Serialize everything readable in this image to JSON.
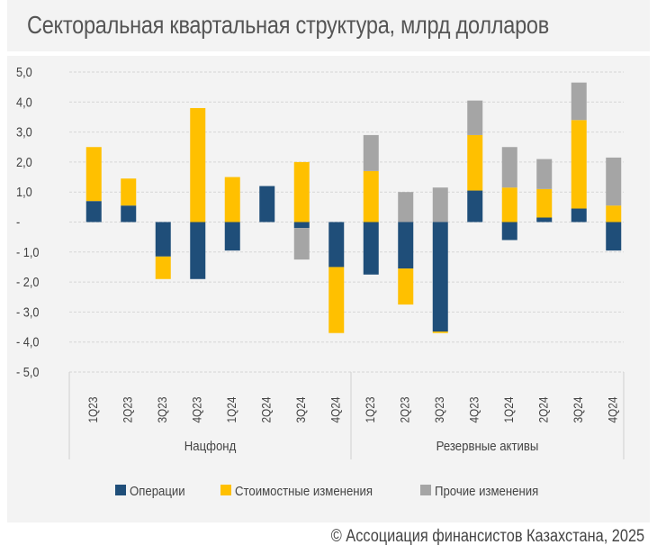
{
  "title": "Секторальная квартальная структура, млрд долларов",
  "copyright": "© Ассоциация финансистов Казахстана, 2025",
  "chart_data": {
    "type": "bar",
    "stacked": true,
    "groups": [
      {
        "label": "Нацфонд",
        "categories": [
          "1Q23",
          "2Q23",
          "3Q23",
          "4Q23",
          "1Q24",
          "2Q24",
          "3Q24",
          "4Q24"
        ]
      },
      {
        "label": "Резервные активы",
        "categories": [
          "1Q23",
          "2Q23",
          "3Q23",
          "4Q23",
          "1Q24",
          "2Q24",
          "3Q24",
          "4Q24"
        ]
      }
    ],
    "series": [
      {
        "name": "Операции",
        "color": "#1f4e79",
        "values": [
          0.7,
          0.55,
          -1.15,
          -1.9,
          -0.95,
          1.2,
          -0.2,
          -1.5,
          -1.75,
          -1.55,
          -3.65,
          1.05,
          -0.6,
          0.15,
          0.45,
          -0.95
        ]
      },
      {
        "name": "Стоимостные изменения",
        "color": "#ffc000",
        "values": [
          1.8,
          0.9,
          -0.75,
          3.8,
          1.5,
          0.0,
          2.0,
          -2.2,
          1.7,
          -1.2,
          -0.05,
          1.85,
          1.15,
          0.95,
          2.95,
          0.55
        ]
      },
      {
        "name": "Прочие изменения",
        "color": "#a5a5a5",
        "values": [
          0.0,
          0.0,
          0.0,
          0.0,
          0.0,
          0.0,
          -1.05,
          0.0,
          1.2,
          1.0,
          1.15,
          1.15,
          1.35,
          1.0,
          1.25,
          1.6
        ]
      }
    ],
    "yticks": [
      "5,0",
      "4,0",
      "3,0",
      "2,0",
      "1,0",
      "-",
      "- 1,0",
      "- 2,0",
      "- 3,0",
      "- 4,0",
      "- 5,0"
    ],
    "ylim": [
      -5,
      5
    ],
    "grid": true,
    "legend_position": "bottom"
  }
}
